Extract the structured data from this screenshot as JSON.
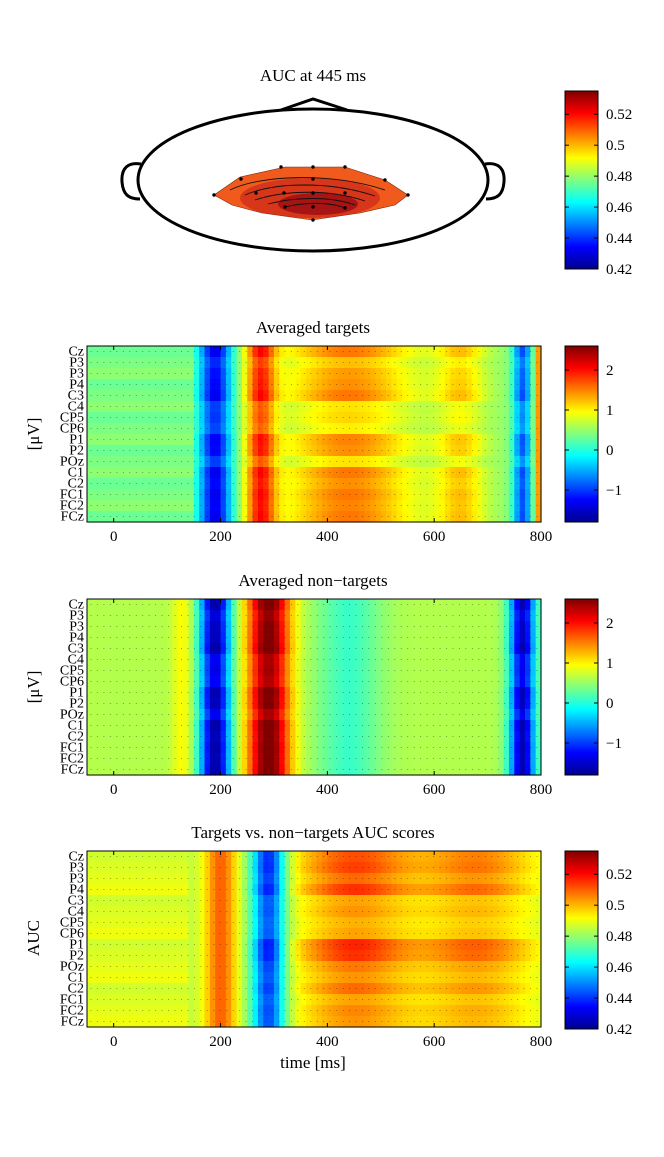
{
  "chart_data": [
    {
      "type": "topoplot",
      "title": "AUC at 445 ms",
      "colorbar": {
        "min": 0.42,
        "max": 0.535,
        "ticks": [
          0.42,
          0.44,
          0.46,
          0.48,
          0.5,
          0.52
        ],
        "tick_labels": [
          "0.42",
          "0.44",
          "0.46",
          "0.48",
          "0.5",
          "0.52"
        ]
      },
      "value_range_shown": [
        0.5,
        0.535
      ]
    },
    {
      "type": "heatmap",
      "title": "Averaged targets",
      "ylabel": "[μV]",
      "xlabel": "",
      "xlim": [
        -50,
        800
      ],
      "x_ticks": [
        0,
        200,
        400,
        600,
        800
      ],
      "x_tick_labels": [
        "0",
        "200",
        "400",
        "600",
        "800"
      ],
      "channels": [
        "Cz",
        "P3",
        "P3",
        "P4",
        "C3",
        "C4",
        "CP5",
        "CP6",
        "P1",
        "P2",
        "POz",
        "C1",
        "C2",
        "FC1",
        "FC2",
        "FCz"
      ],
      "colorbar": {
        "min": -1.8,
        "max": 2.6,
        "ticks": [
          -1,
          0,
          1,
          2
        ],
        "tick_labels": [
          "−1",
          "0",
          "1",
          "2"
        ]
      },
      "pattern": "targets"
    },
    {
      "type": "heatmap",
      "title": "Averaged non−targets",
      "ylabel": "[μV]",
      "xlabel": "",
      "xlim": [
        -50,
        800
      ],
      "x_ticks": [
        0,
        200,
        400,
        600,
        800
      ],
      "x_tick_labels": [
        "0",
        "200",
        "400",
        "600",
        "800"
      ],
      "channels": [
        "Cz",
        "P3",
        "P3",
        "P4",
        "C3",
        "C4",
        "CP5",
        "CP6",
        "P1",
        "P2",
        "POz",
        "C1",
        "C2",
        "FC1",
        "FC2",
        "FCz"
      ],
      "colorbar": {
        "min": -1.8,
        "max": 2.6,
        "ticks": [
          -1,
          0,
          1,
          2
        ],
        "tick_labels": [
          "−1",
          "0",
          "1",
          "2"
        ]
      },
      "pattern": "nontargets"
    },
    {
      "type": "heatmap",
      "title": "Targets vs. non−targets AUC scores",
      "ylabel": "AUC",
      "xlabel": "time [ms]",
      "xlim": [
        -50,
        800
      ],
      "x_ticks": [
        0,
        200,
        400,
        600,
        800
      ],
      "x_tick_labels": [
        "0",
        "200",
        "400",
        "600",
        "800"
      ],
      "channels": [
        "Cz",
        "P3",
        "P3",
        "P4",
        "C3",
        "C4",
        "CP5",
        "CP6",
        "P1",
        "P2",
        "POz",
        "C1",
        "C2",
        "FC1",
        "FC2",
        "FCz"
      ],
      "colorbar": {
        "min": 0.42,
        "max": 0.535,
        "ticks": [
          0.42,
          0.44,
          0.46,
          0.48,
          0.5,
          0.52
        ],
        "tick_labels": [
          "0.42",
          "0.44",
          "0.46",
          "0.48",
          "0.5",
          "0.52"
        ]
      },
      "pattern": "auc"
    }
  ]
}
